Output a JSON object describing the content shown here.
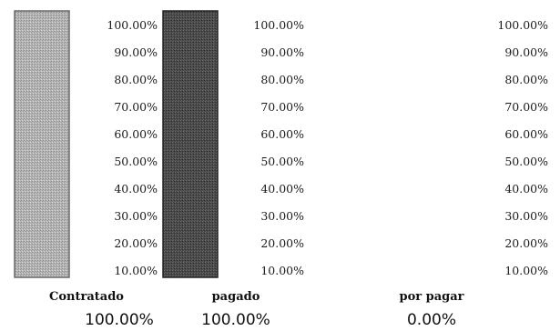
{
  "chart_data": [
    {
      "type": "bar",
      "categories": [
        "Contratado"
      ],
      "values": [
        100
      ],
      "value_label": "100.00%",
      "yticks": [
        "10.00%",
        "20.00%",
        "30.00%",
        "40.00%",
        "50.00%",
        "60.00%",
        "70.00%",
        "80.00%",
        "90.00%",
        "100.00%"
      ],
      "ylim": [
        0,
        100
      ],
      "color": "#a9a9a9",
      "grid": false
    },
    {
      "type": "bar",
      "categories": [
        "pagado"
      ],
      "values": [
        100
      ],
      "value_label": "100.00%",
      "yticks": [
        "10.00%",
        "20.00%",
        "30.00%",
        "40.00%",
        "50.00%",
        "60.00%",
        "70.00%",
        "80.00%",
        "90.00%",
        "100.00%"
      ],
      "ylim": [
        0,
        100
      ],
      "color": "#4a4a4a",
      "grid": false
    },
    {
      "type": "bar",
      "categories": [
        "por pagar"
      ],
      "values": [
        0
      ],
      "value_label": "0.00%",
      "yticks": [
        "10.00%",
        "20.00%",
        "30.00%",
        "40.00%",
        "50.00%",
        "60.00%",
        "70.00%",
        "80.00%",
        "90.00%",
        "100.00%"
      ],
      "ylim": [
        0,
        100
      ],
      "color": "#bdbdbd",
      "grid": false
    }
  ]
}
